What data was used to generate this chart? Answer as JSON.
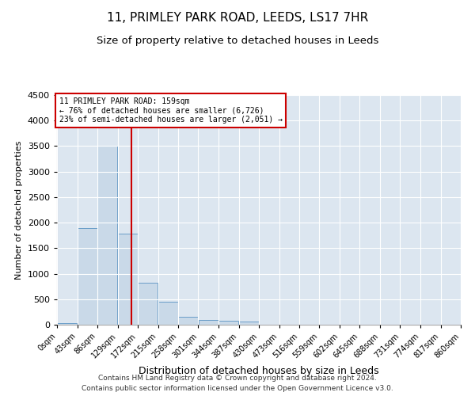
{
  "title1": "11, PRIMLEY PARK ROAD, LEEDS, LS17 7HR",
  "title2": "Size of property relative to detached houses in Leeds",
  "xlabel": "Distribution of detached houses by size in Leeds",
  "ylabel": "Number of detached properties",
  "annotation_line1": "11 PRIMLEY PARK ROAD: 159sqm",
  "annotation_line2": "← 76% of detached houses are smaller (6,726)",
  "annotation_line3": "23% of semi-detached houses are larger (2,051) →",
  "property_size_sqm": 159,
  "bin_edges": [
    0,
    43,
    86,
    129,
    172,
    215,
    258,
    301,
    344,
    387,
    430,
    473,
    516,
    559,
    602,
    645,
    688,
    731,
    774,
    817,
    860
  ],
  "bar_values": [
    30,
    1900,
    3500,
    1780,
    820,
    450,
    155,
    90,
    70,
    55,
    0,
    0,
    0,
    0,
    0,
    0,
    0,
    0,
    0,
    0
  ],
  "bar_color": "#c9d9e8",
  "bar_edgecolor": "#6a9dc8",
  "vline_color": "#cc0000",
  "vline_x": 159,
  "ylim": [
    0,
    4500
  ],
  "yticks": [
    0,
    500,
    1000,
    1500,
    2000,
    2500,
    3000,
    3500,
    4000,
    4500
  ],
  "footer1": "Contains HM Land Registry data © Crown copyright and database right 2024.",
  "footer2": "Contains public sector information licensed under the Open Government Licence v3.0.",
  "background_color": "#ffffff",
  "plot_bg_color": "#dce6f0",
  "grid_color": "#ffffff",
  "title1_fontsize": 11,
  "title2_fontsize": 9.5,
  "footer_fontsize": 6.5,
  "annotation_box_color": "#ffffff",
  "annotation_box_edgecolor": "#cc0000"
}
